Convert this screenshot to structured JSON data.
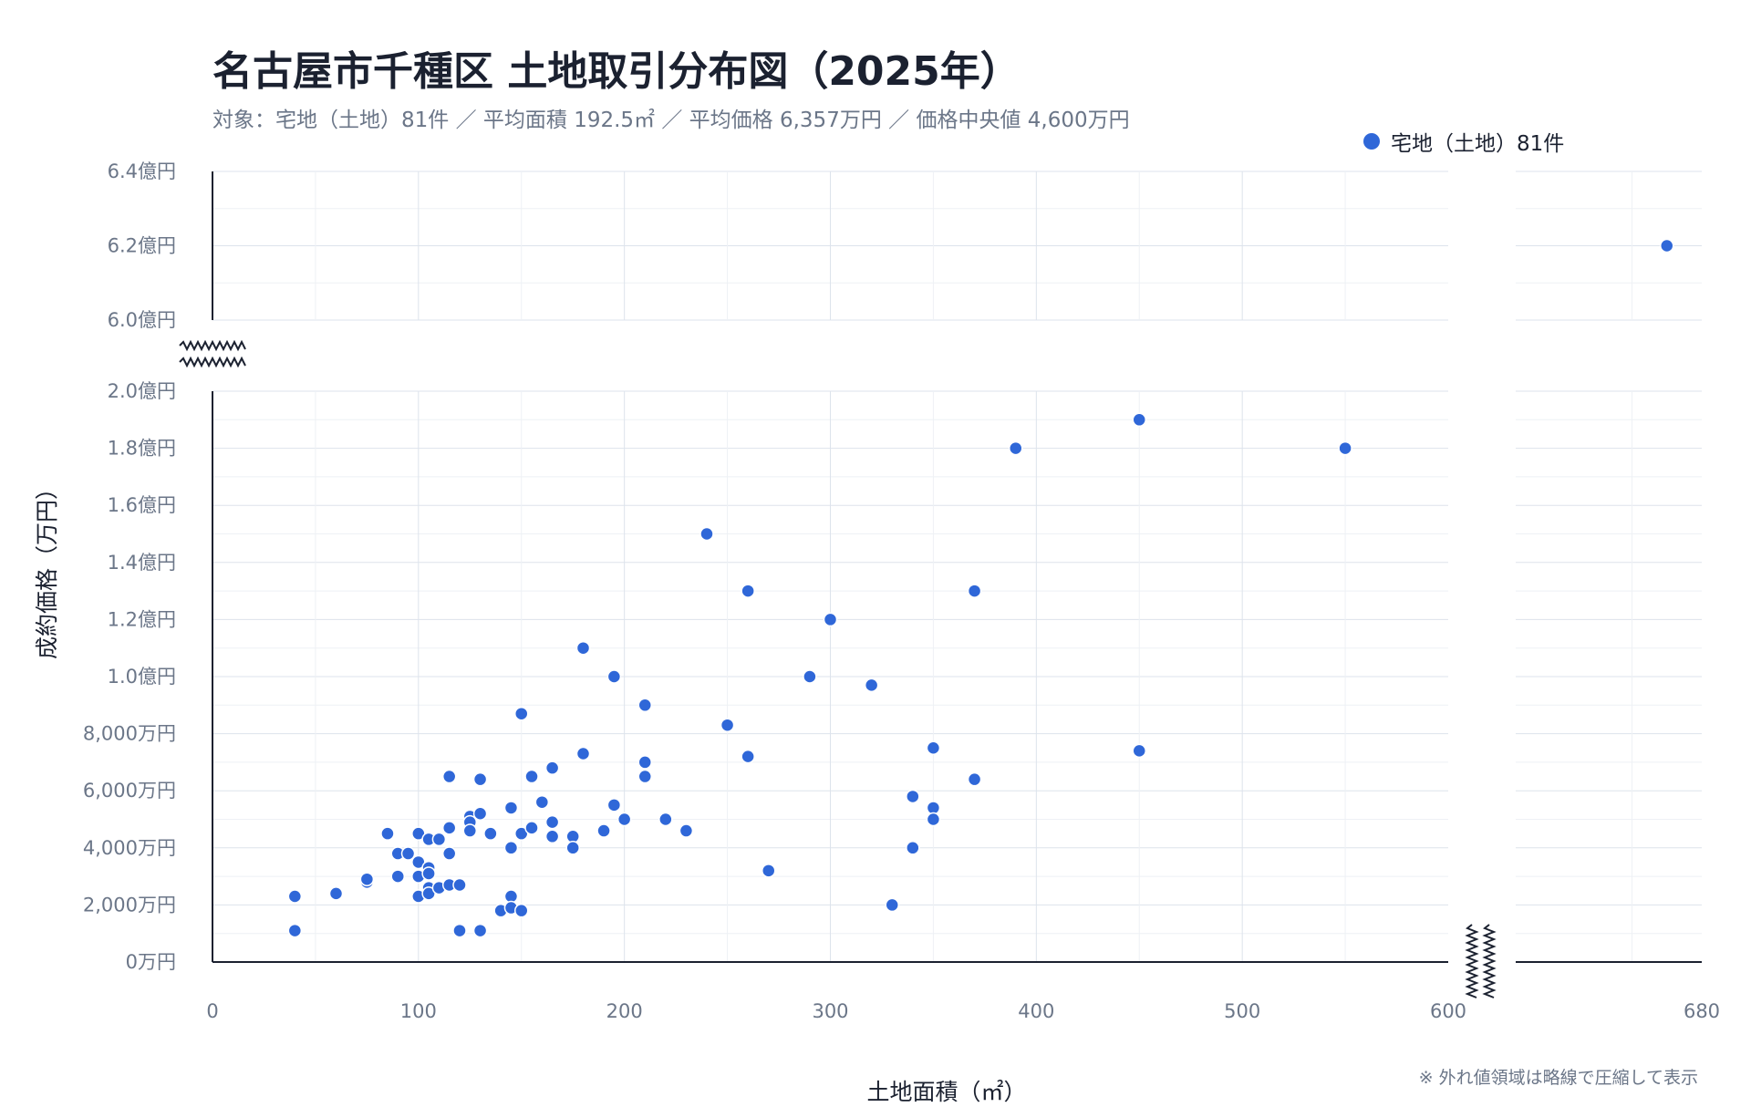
{
  "chart_data": {
    "type": "scatter",
    "title": "名古屋市千種区 土地取引分布図（2025年）",
    "subtitle": "対象：宅地（土地）81件 ／ 平均面積 192.5㎡ ／ 平均価格 6,357万円 ／ 価格中央値 4,600万円",
    "xlabel": "土地面積（㎡）",
    "ylabel": "成約価格（万円）",
    "note": "※ 外れ値領域は略線で圧縮して表示",
    "legend_position": "top-right",
    "grid": true,
    "axis_breaks": {
      "x": [
        600,
        680
      ],
      "y": [
        20000,
        60000
      ]
    },
    "x_ticks": [
      {
        "value": 0,
        "label": "0"
      },
      {
        "value": 100,
        "label": "100"
      },
      {
        "value": 200,
        "label": "200"
      },
      {
        "value": 300,
        "label": "300"
      },
      {
        "value": 400,
        "label": "400"
      },
      {
        "value": 500,
        "label": "500"
      },
      {
        "value": 600,
        "label": "600"
      },
      {
        "value": 680,
        "label": "680"
      }
    ],
    "y_ticks": [
      {
        "value": 0,
        "label": "0万円"
      },
      {
        "value": 2000,
        "label": "2,000万円"
      },
      {
        "value": 4000,
        "label": "4,000万円"
      },
      {
        "value": 6000,
        "label": "6,000万円"
      },
      {
        "value": 8000,
        "label": "8,000万円"
      },
      {
        "value": 10000,
        "label": "1.0億円"
      },
      {
        "value": 12000,
        "label": "1.2億円"
      },
      {
        "value": 14000,
        "label": "1.4億円"
      },
      {
        "value": 16000,
        "label": "1.6億円"
      },
      {
        "value": 18000,
        "label": "1.8億円"
      },
      {
        "value": 20000,
        "label": "2.0億円"
      },
      {
        "value": 60000,
        "label": "6.0億円"
      },
      {
        "value": 62000,
        "label": "6.2億円"
      },
      {
        "value": 64000,
        "label": "6.4億円"
      }
    ],
    "series": [
      {
        "name": "宅地（土地）81件",
        "color": "#2f67d8",
        "points": [
          [
            40,
            1100
          ],
          [
            40,
            2300
          ],
          [
            60,
            2400
          ],
          [
            75,
            2800
          ],
          [
            75,
            2900
          ],
          [
            85,
            4500
          ],
          [
            90,
            3800
          ],
          [
            90,
            3000
          ],
          [
            95,
            3800
          ],
          [
            100,
            4500
          ],
          [
            100,
            3500
          ],
          [
            100,
            3000
          ],
          [
            100,
            2300
          ],
          [
            105,
            3300
          ],
          [
            105,
            4300
          ],
          [
            105,
            3100
          ],
          [
            105,
            2600
          ],
          [
            105,
            2400
          ],
          [
            110,
            4300
          ],
          [
            110,
            2600
          ],
          [
            115,
            6500
          ],
          [
            115,
            4700
          ],
          [
            115,
            3800
          ],
          [
            115,
            2700
          ],
          [
            120,
            2700
          ],
          [
            120,
            1100
          ],
          [
            125,
            5100
          ],
          [
            125,
            4900
          ],
          [
            125,
            4600
          ],
          [
            130,
            6400
          ],
          [
            130,
            5200
          ],
          [
            130,
            1100
          ],
          [
            135,
            4500
          ],
          [
            140,
            1800
          ],
          [
            145,
            5400
          ],
          [
            145,
            4000
          ],
          [
            145,
            2300
          ],
          [
            145,
            1900
          ],
          [
            150,
            8700
          ],
          [
            150,
            4500
          ],
          [
            150,
            1800
          ],
          [
            155,
            6500
          ],
          [
            155,
            4700
          ],
          [
            160,
            5600
          ],
          [
            165,
            6800
          ],
          [
            165,
            4900
          ],
          [
            165,
            4400
          ],
          [
            175,
            4400
          ],
          [
            175,
            4000
          ],
          [
            180,
            11000
          ],
          [
            180,
            7300
          ],
          [
            190,
            4600
          ],
          [
            195,
            10000
          ],
          [
            195,
            5500
          ],
          [
            200,
            5000
          ],
          [
            210,
            9000
          ],
          [
            210,
            7000
          ],
          [
            210,
            6500
          ],
          [
            220,
            5000
          ],
          [
            230,
            4600
          ],
          [
            240,
            15000
          ],
          [
            250,
            8300
          ],
          [
            260,
            13000
          ],
          [
            260,
            7200
          ],
          [
            270,
            3200
          ],
          [
            290,
            10000
          ],
          [
            300,
            12000
          ],
          [
            320,
            9700
          ],
          [
            330,
            2000
          ],
          [
            340,
            5800
          ],
          [
            340,
            4000
          ],
          [
            350,
            7500
          ],
          [
            350,
            5400
          ],
          [
            350,
            5000
          ],
          [
            370,
            13000
          ],
          [
            370,
            6400
          ],
          [
            390,
            18000
          ],
          [
            450,
            19000
          ],
          [
            450,
            7400
          ],
          [
            550,
            18000
          ],
          [
            665,
            62000
          ]
        ]
      }
    ]
  }
}
